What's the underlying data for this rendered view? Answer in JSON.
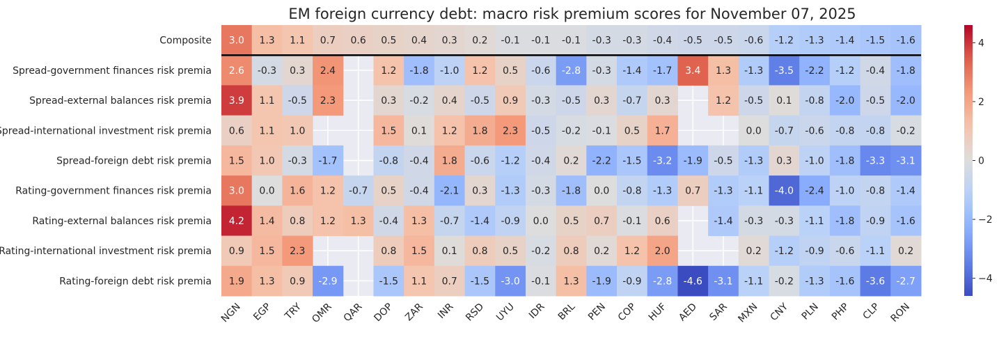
{
  "chart_data": {
    "type": "heatmap",
    "title": "EM foreign currency debt: macro risk premium scores for November 07, 2025",
    "xlabel": "",
    "ylabel": "",
    "colormap": "coolwarm",
    "color_range": [
      -4.6,
      4.6
    ],
    "colorbar_ticks": [
      4,
      2,
      0,
      -2,
      -4
    ],
    "colorbar_tick_labels": [
      "4",
      "2",
      "0",
      "−2",
      "−4"
    ],
    "separator_after_row": "Composite",
    "missing_color": "#eaeaf2",
    "columns": [
      "NGN",
      "EGP",
      "TRY",
      "OMR",
      "QAR",
      "DOP",
      "ZAR",
      "INR",
      "RSD",
      "UYU",
      "IDR",
      "BRL",
      "PEN",
      "COP",
      "HUF",
      "AED",
      "SAR",
      "MXN",
      "CNY",
      "PLN",
      "PHP",
      "CLP",
      "RON"
    ],
    "rows": [
      {
        "name": "Composite",
        "values": [
          3.0,
          1.3,
          1.1,
          0.7,
          0.6,
          0.5,
          0.4,
          0.3,
          0.2,
          -0.1,
          -0.1,
          -0.1,
          -0.3,
          -0.3,
          -0.4,
          -0.5,
          -0.5,
          -0.6,
          -1.2,
          -1.3,
          -1.4,
          -1.5,
          -1.6
        ]
      },
      {
        "name": "Spread-government finances risk premia",
        "values": [
          2.6,
          -0.3,
          0.3,
          2.4,
          null,
          1.2,
          -1.8,
          -1.0,
          1.2,
          0.5,
          -0.6,
          -2.8,
          -0.3,
          -1.4,
          -1.7,
          3.4,
          1.3,
          -1.3,
          -3.5,
          -2.2,
          -1.2,
          -0.4,
          -1.8
        ]
      },
      {
        "name": "Spread-external balances risk premia",
        "values": [
          3.9,
          1.1,
          -0.5,
          2.3,
          null,
          0.3,
          -0.2,
          0.4,
          -0.5,
          0.9,
          -0.3,
          -0.5,
          0.3,
          -0.7,
          0.3,
          null,
          1.2,
          -0.5,
          0.1,
          -0.8,
          -2.0,
          -0.5,
          -2.0
        ]
      },
      {
        "name": "Spread-international investment risk premia",
        "values": [
          0.6,
          1.1,
          1.0,
          null,
          null,
          1.5,
          0.1,
          1.2,
          1.8,
          2.3,
          -0.5,
          -0.2,
          -0.1,
          0.5,
          1.7,
          null,
          null,
          0.0,
          -0.7,
          -0.6,
          -0.8,
          -0.8,
          -0.2
        ]
      },
      {
        "name": "Spread-foreign debt risk premia",
        "values": [
          1.5,
          1.0,
          -0.3,
          -1.7,
          null,
          -0.8,
          -0.4,
          1.8,
          -0.6,
          -1.2,
          -0.4,
          0.2,
          -2.2,
          -1.5,
          -3.2,
          -1.9,
          -0.5,
          -1.3,
          0.3,
          -1.0,
          -1.8,
          -3.3,
          -3.1
        ]
      },
      {
        "name": "Rating-government finances risk premia",
        "values": [
          3.0,
          0.0,
          1.6,
          1.2,
          -0.7,
          0.5,
          -0.4,
          -2.1,
          0.3,
          -1.3,
          -0.3,
          -1.8,
          0.0,
          -0.8,
          -1.3,
          0.7,
          -1.3,
          -1.1,
          -4.0,
          -2.4,
          -1.0,
          -0.8,
          -1.4
        ]
      },
      {
        "name": "Rating-external balances risk premia",
        "values": [
          4.2,
          1.4,
          0.8,
          1.2,
          1.3,
          -0.4,
          1.3,
          -0.7,
          -1.4,
          -0.9,
          -0.0,
          0.5,
          0.7,
          -0.1,
          0.6,
          null,
          -1.4,
          -0.3,
          -0.3,
          -1.1,
          -1.8,
          -0.9,
          -1.6
        ]
      },
      {
        "name": "Rating-international investment risk premia",
        "values": [
          0.9,
          1.5,
          2.3,
          null,
          null,
          0.8,
          1.5,
          0.1,
          0.8,
          0.5,
          -0.2,
          0.8,
          0.2,
          1.2,
          2.0,
          null,
          null,
          0.2,
          -1.2,
          -0.9,
          -0.6,
          -1.1,
          0.2
        ]
      },
      {
        "name": "Rating-foreign debt risk premia",
        "values": [
          1.9,
          1.3,
          0.9,
          -2.9,
          null,
          -1.5,
          1.1,
          0.7,
          -1.5,
          -3.0,
          -0.1,
          1.3,
          -1.9,
          -0.9,
          -2.8,
          -4.6,
          -3.1,
          -1.1,
          -0.2,
          -1.3,
          -1.6,
          -3.6,
          -2.7
        ]
      }
    ]
  }
}
